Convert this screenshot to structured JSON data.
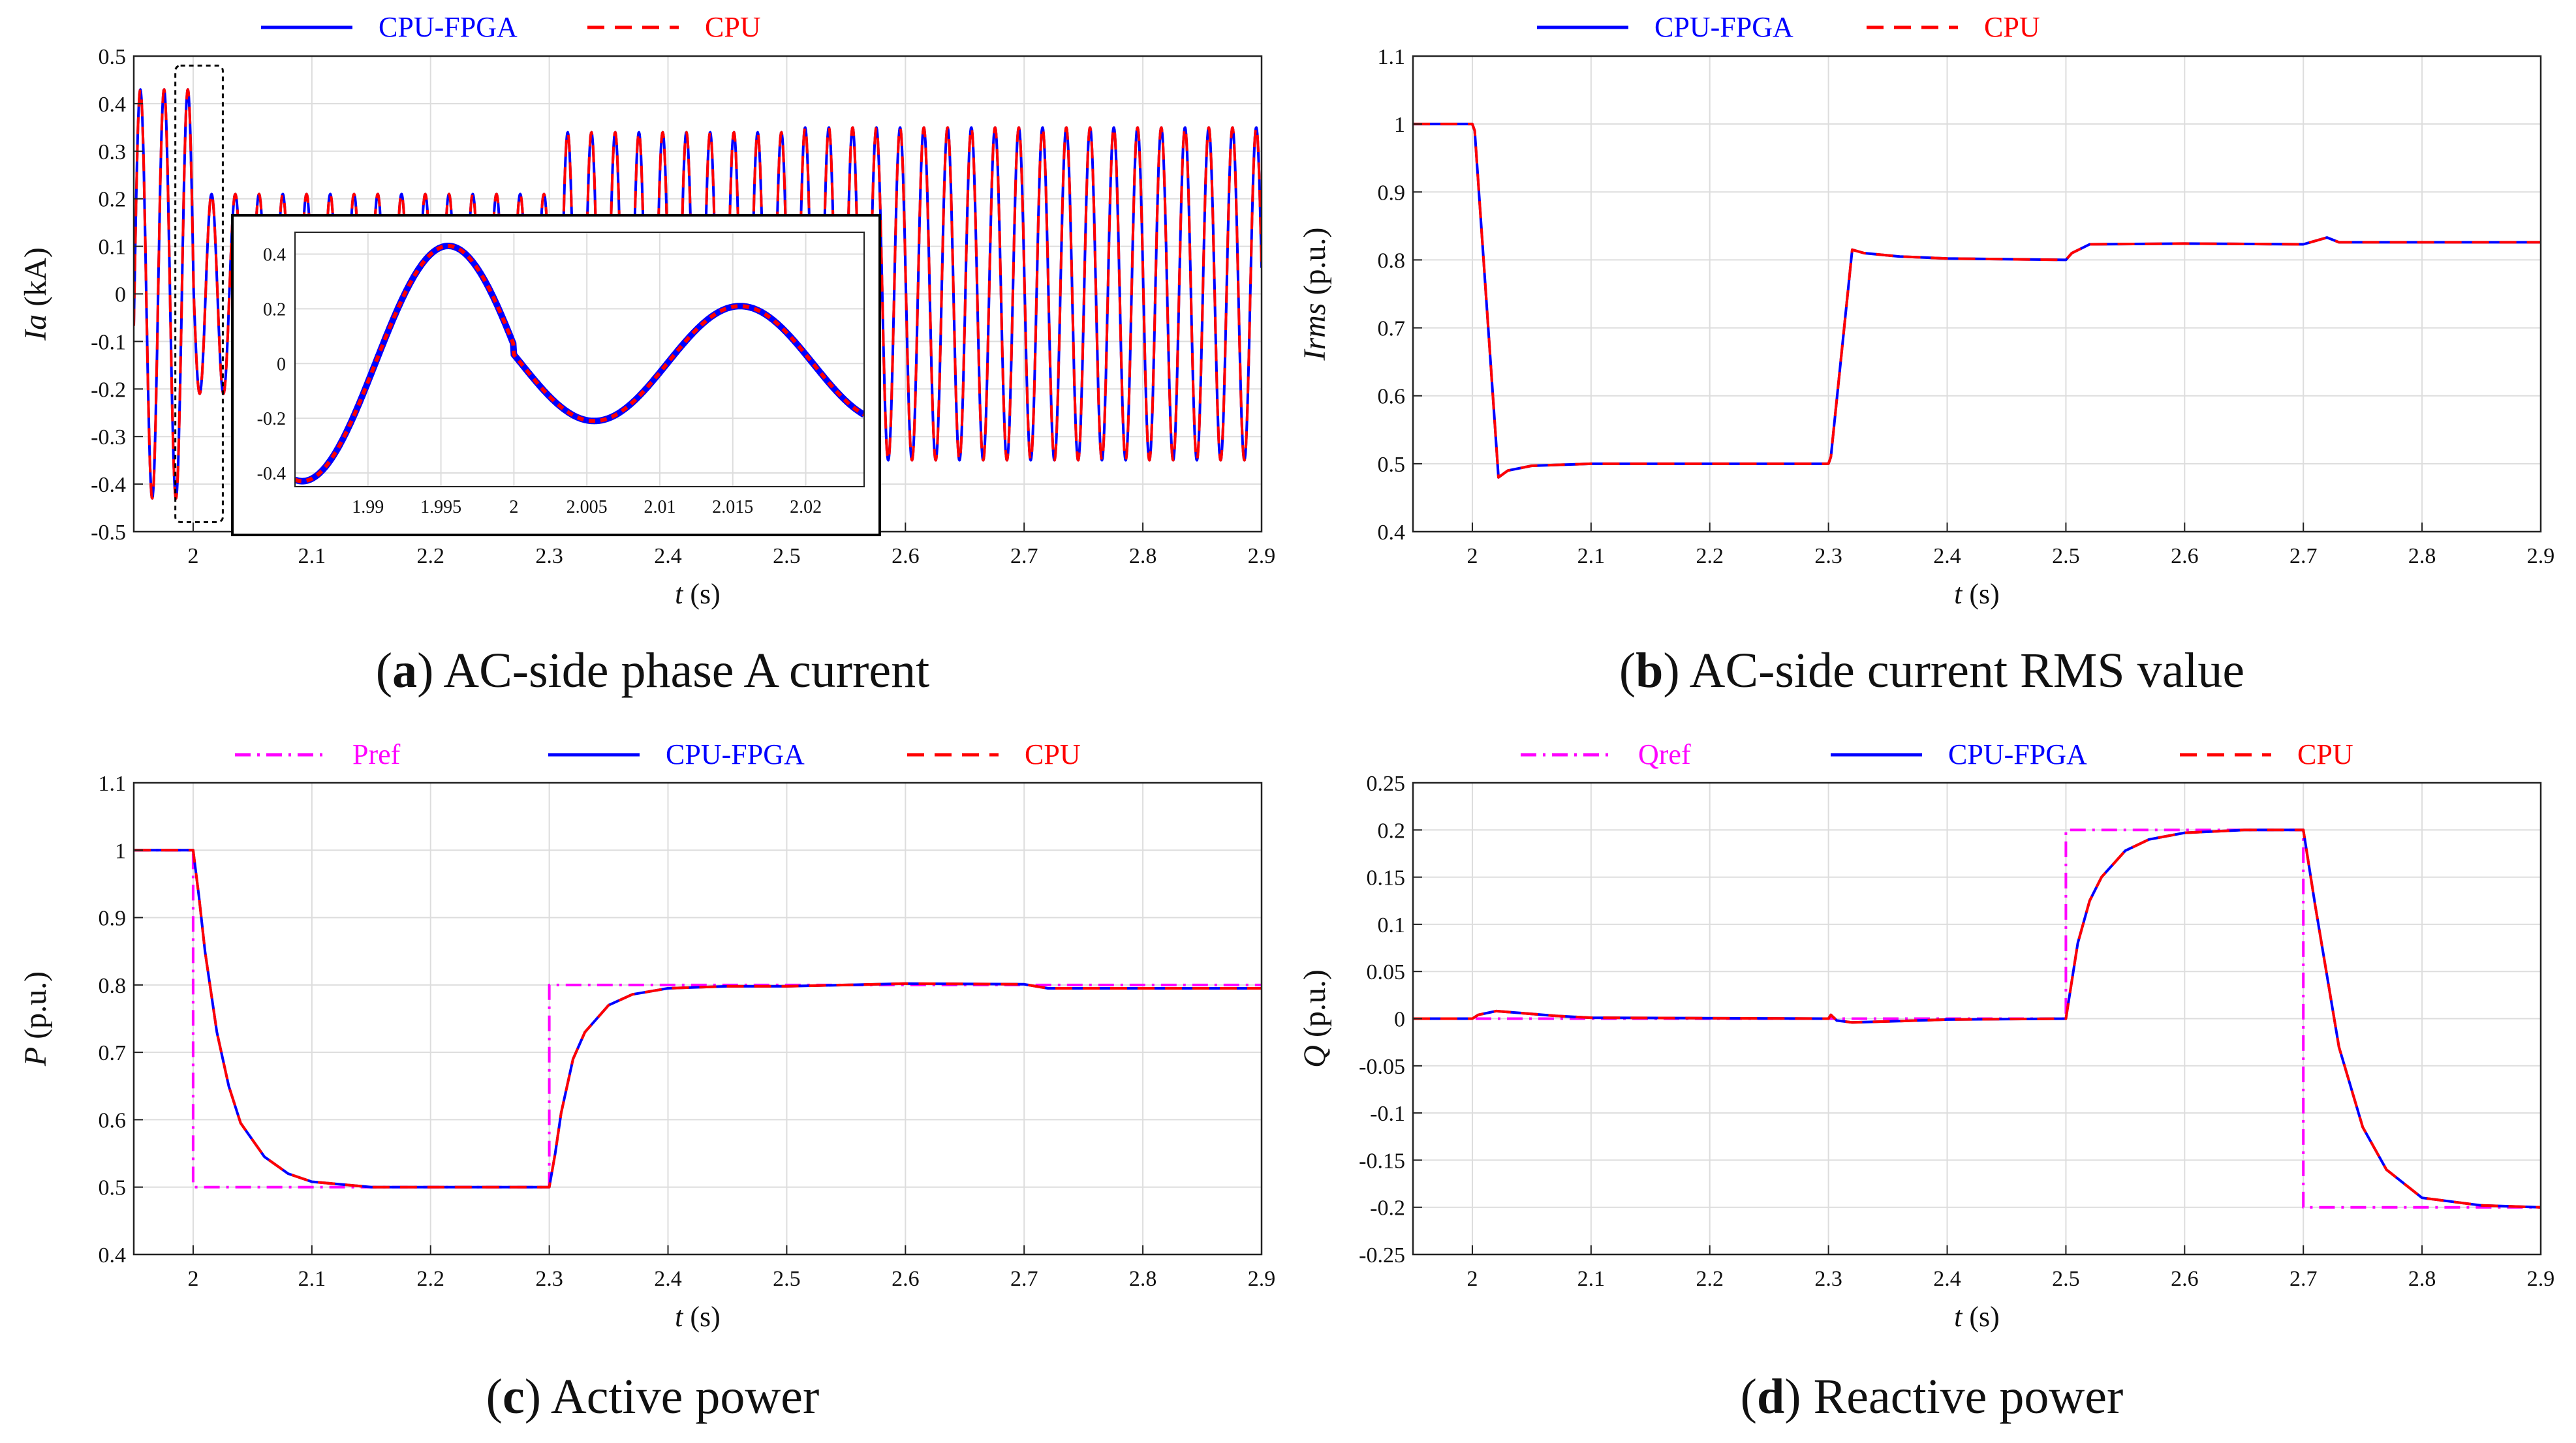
{
  "colors": {
    "cpu_fpga": "#0000ff",
    "cpu": "#ff0000",
    "ref": "#ff00ff",
    "grid": "#dddddd",
    "axis": "#222222",
    "zoom_box": "#000000"
  },
  "chart_data": [
    {
      "id": "a",
      "type": "line",
      "caption_letter": "a",
      "caption_text": "AC-side phase A current",
      "ylabel_italic": "Ia",
      "ylabel_unit": "(kA)",
      "xlabel_italic": "t",
      "xlabel_unit": "(s)",
      "xlim": [
        1.95,
        2.9
      ],
      "ylim": [
        -0.5,
        0.5
      ],
      "xticks": [
        2,
        2.1,
        2.2,
        2.3,
        2.4,
        2.5,
        2.6,
        2.7,
        2.8,
        2.9
      ],
      "xtick_labels": [
        "2",
        "2.1",
        "2.2",
        "2.3",
        "2.4",
        "2.5",
        "2.6",
        "2.7",
        "2.8",
        "2.9"
      ],
      "yticks": [
        -0.5,
        -0.4,
        -0.3,
        -0.2,
        -0.1,
        0,
        0.1,
        0.2,
        0.3,
        0.4,
        0.5
      ],
      "ytick_labels": [
        "-0.5",
        "-0.4",
        "-0.3",
        "-0.2",
        "-0.1",
        "0",
        "0.1",
        "0.2",
        "0.3",
        "0.4",
        "0.5"
      ],
      "grid": true,
      "legend": [
        "CPU-FPGA",
        "CPU"
      ],
      "legend_position": "top",
      "series": [
        {
          "name": "CPU-FPGA",
          "style": "solid",
          "color": "#0000ff",
          "signal": "sinusoid",
          "frequency_hz": 50,
          "amplitude_segments": [
            [
              1.95,
              2.0,
              0.43
            ],
            [
              2.0,
              2.3,
              0.21
            ],
            [
              2.3,
              2.5,
              0.34
            ],
            [
              2.5,
              2.9,
              0.35
            ]
          ]
        },
        {
          "name": "CPU",
          "style": "dashed",
          "color": "#ff0000",
          "signal": "sinusoid",
          "frequency_hz": 50,
          "amplitude_segments": [
            [
              1.95,
              2.0,
              0.43
            ],
            [
              2.0,
              2.3,
              0.21
            ],
            [
              2.3,
              2.5,
              0.34
            ],
            [
              2.5,
              2.9,
              0.35
            ]
          ]
        }
      ],
      "zoom_region": {
        "x": [
          1.985,
          2.025
        ],
        "y": [
          -0.48,
          0.48
        ]
      },
      "inset": {
        "xlim": [
          1.985,
          2.024
        ],
        "ylim": [
          -0.45,
          0.48
        ],
        "xticks": [
          1.99,
          1.995,
          2.0,
          2.005,
          2.01,
          2.015,
          2.02
        ],
        "xtick_labels": [
          "1.99",
          "1.995",
          "2",
          "2.005",
          "2.01",
          "2.015",
          "2.02"
        ],
        "yticks": [
          -0.4,
          -0.2,
          0,
          0.2,
          0.4
        ],
        "ytick_labels": [
          "-0.4",
          "-0.2",
          "0",
          "0.2",
          "0.4"
        ]
      }
    },
    {
      "id": "b",
      "type": "line",
      "caption_letter": "b",
      "caption_text": "AC-side current RMS value",
      "ylabel_italic": "Irms",
      "ylabel_unit": "(p.u.)",
      "xlabel_italic": "t",
      "xlabel_unit": "(s)",
      "xlim": [
        1.95,
        2.9
      ],
      "ylim": [
        0.4,
        1.1
      ],
      "xticks": [
        2,
        2.1,
        2.2,
        2.3,
        2.4,
        2.5,
        2.6,
        2.7,
        2.8,
        2.9
      ],
      "xtick_labels": [
        "2",
        "2.1",
        "2.2",
        "2.3",
        "2.4",
        "2.5",
        "2.6",
        "2.7",
        "2.8",
        "2.9"
      ],
      "yticks": [
        0.4,
        0.5,
        0.6,
        0.7,
        0.8,
        0.9,
        1,
        1.1
      ],
      "ytick_labels": [
        "0.4",
        "0.5",
        "0.6",
        "0.7",
        "0.8",
        "0.9",
        "1",
        "1.1"
      ],
      "grid": true,
      "legend": [
        "CPU-FPGA",
        "CPU"
      ],
      "legend_position": "top",
      "series": [
        {
          "name": "CPU-FPGA",
          "style": "solid",
          "color": "#0000ff",
          "x": [
            1.95,
            2.0,
            2.002,
            2.022,
            2.03,
            2.05,
            2.1,
            2.3,
            2.302,
            2.32,
            2.33,
            2.36,
            2.4,
            2.5,
            2.505,
            2.52,
            2.6,
            2.7,
            2.71,
            2.72,
            2.73,
            2.8,
            2.9
          ],
          "y": [
            1.0,
            1.0,
            0.99,
            0.48,
            0.49,
            0.497,
            0.5,
            0.5,
            0.51,
            0.815,
            0.81,
            0.805,
            0.802,
            0.8,
            0.81,
            0.823,
            0.824,
            0.823,
            0.828,
            0.833,
            0.826,
            0.826,
            0.826
          ]
        },
        {
          "name": "CPU",
          "style": "dashed",
          "color": "#ff0000",
          "x": [
            1.95,
            2.0,
            2.002,
            2.022,
            2.03,
            2.05,
            2.1,
            2.3,
            2.302,
            2.32,
            2.33,
            2.36,
            2.4,
            2.5,
            2.505,
            2.52,
            2.6,
            2.7,
            2.71,
            2.72,
            2.73,
            2.8,
            2.9
          ],
          "y": [
            1.0,
            1.0,
            0.99,
            0.48,
            0.49,
            0.497,
            0.5,
            0.5,
            0.51,
            0.815,
            0.81,
            0.805,
            0.802,
            0.8,
            0.81,
            0.823,
            0.824,
            0.823,
            0.828,
            0.833,
            0.826,
            0.826,
            0.826
          ]
        }
      ]
    },
    {
      "id": "c",
      "type": "line",
      "caption_letter": "c",
      "caption_text": "Active power",
      "ylabel_italic": "P",
      "ylabel_unit": "(p.u.)",
      "xlabel_italic": "t",
      "xlabel_unit": "(s)",
      "xlim": [
        1.95,
        2.9
      ],
      "ylim": [
        0.4,
        1.1
      ],
      "xticks": [
        2,
        2.1,
        2.2,
        2.3,
        2.4,
        2.5,
        2.6,
        2.7,
        2.8,
        2.9
      ],
      "xtick_labels": [
        "2",
        "2.1",
        "2.2",
        "2.3",
        "2.4",
        "2.5",
        "2.6",
        "2.7",
        "2.8",
        "2.9"
      ],
      "yticks": [
        0.4,
        0.5,
        0.6,
        0.7,
        0.8,
        0.9,
        1,
        1.1
      ],
      "ytick_labels": [
        "0.4",
        "0.5",
        "0.6",
        "0.7",
        "0.8",
        "0.9",
        "1",
        "1.1"
      ],
      "grid": true,
      "legend": [
        "Pref",
        "CPU-FPGA",
        "CPU"
      ],
      "legend_position": "top",
      "series": [
        {
          "name": "Pref",
          "style": "dashdot",
          "color": "#ff00ff",
          "x": [
            1.95,
            2.0,
            2.0,
            2.3,
            2.3,
            2.9
          ],
          "y": [
            1.0,
            1.0,
            0.5,
            0.5,
            0.8,
            0.8
          ]
        },
        {
          "name": "CPU-FPGA",
          "style": "solid",
          "color": "#0000ff",
          "x": [
            1.95,
            2.0,
            2.005,
            2.01,
            2.02,
            2.03,
            2.04,
            2.06,
            2.08,
            2.1,
            2.15,
            2.3,
            2.305,
            2.31,
            2.32,
            2.33,
            2.35,
            2.37,
            2.4,
            2.45,
            2.5,
            2.6,
            2.7,
            2.72,
            2.9
          ],
          "y": [
            1.0,
            1.0,
            0.93,
            0.85,
            0.73,
            0.65,
            0.595,
            0.545,
            0.52,
            0.508,
            0.5,
            0.5,
            0.55,
            0.61,
            0.69,
            0.73,
            0.77,
            0.786,
            0.795,
            0.798,
            0.798,
            0.802,
            0.801,
            0.795,
            0.795
          ]
        },
        {
          "name": "CPU",
          "style": "dashed",
          "color": "#ff0000",
          "x": [
            1.95,
            2.0,
            2.005,
            2.01,
            2.02,
            2.03,
            2.04,
            2.06,
            2.08,
            2.1,
            2.15,
            2.3,
            2.305,
            2.31,
            2.32,
            2.33,
            2.35,
            2.37,
            2.4,
            2.45,
            2.5,
            2.6,
            2.7,
            2.72,
            2.9
          ],
          "y": [
            1.0,
            1.0,
            0.93,
            0.85,
            0.73,
            0.65,
            0.595,
            0.545,
            0.52,
            0.508,
            0.5,
            0.5,
            0.55,
            0.61,
            0.69,
            0.73,
            0.77,
            0.786,
            0.795,
            0.798,
            0.798,
            0.802,
            0.801,
            0.795,
            0.795
          ]
        }
      ]
    },
    {
      "id": "d",
      "type": "line",
      "caption_letter": "d",
      "caption_text": "Reactive power",
      "ylabel_italic": "Q",
      "ylabel_unit": "(p.u.)",
      "xlabel_italic": "t",
      "xlabel_unit": "(s)",
      "xlim": [
        1.95,
        2.9
      ],
      "ylim": [
        -0.25,
        0.25
      ],
      "xticks": [
        2,
        2.1,
        2.2,
        2.3,
        2.4,
        2.5,
        2.6,
        2.7,
        2.8,
        2.9
      ],
      "xtick_labels": [
        "2",
        "2.1",
        "2.2",
        "2.3",
        "2.4",
        "2.5",
        "2.6",
        "2.7",
        "2.8",
        "2.9"
      ],
      "yticks": [
        -0.25,
        -0.2,
        -0.15,
        -0.1,
        -0.05,
        0,
        0.05,
        0.1,
        0.15,
        0.2,
        0.25
      ],
      "ytick_labels": [
        "-0.25",
        "-0.2",
        "-0.15",
        "-0.1",
        "-0.05",
        "0",
        "0.05",
        "0.1",
        "0.15",
        "0.2",
        "0.25"
      ],
      "grid": true,
      "legend": [
        "Qref",
        "CPU-FPGA",
        "CPU"
      ],
      "legend_position": "top",
      "series": [
        {
          "name": "Qref",
          "style": "dashdot",
          "color": "#ff00ff",
          "x": [
            1.95,
            2.5,
            2.5,
            2.7,
            2.7,
            2.9
          ],
          "y": [
            0.0,
            0.0,
            0.2,
            0.2,
            -0.2,
            -0.2
          ]
        },
        {
          "name": "CPU-FPGA",
          "style": "solid",
          "color": "#0000ff",
          "x": [
            1.95,
            2.0,
            2.005,
            2.02,
            2.04,
            2.07,
            2.1,
            2.3,
            2.302,
            2.307,
            2.32,
            2.35,
            2.4,
            2.5,
            2.505,
            2.51,
            2.52,
            2.53,
            2.55,
            2.57,
            2.6,
            2.65,
            2.7,
            2.705,
            2.71,
            2.72,
            2.73,
            2.75,
            2.77,
            2.8,
            2.85,
            2.9
          ],
          "y": [
            0.0,
            0.0,
            0.004,
            0.008,
            0.006,
            0.003,
            0.001,
            0.0,
            0.004,
            -0.002,
            -0.004,
            -0.003,
            -0.001,
            0.0,
            0.04,
            0.08,
            0.125,
            0.15,
            0.178,
            0.19,
            0.197,
            0.2,
            0.2,
            0.16,
            0.12,
            0.045,
            -0.03,
            -0.115,
            -0.16,
            -0.19,
            -0.198,
            -0.2
          ]
        },
        {
          "name": "CPU",
          "style": "dashed",
          "color": "#ff0000",
          "x": [
            1.95,
            2.0,
            2.005,
            2.02,
            2.04,
            2.07,
            2.1,
            2.3,
            2.302,
            2.307,
            2.32,
            2.35,
            2.4,
            2.5,
            2.505,
            2.51,
            2.52,
            2.53,
            2.55,
            2.57,
            2.6,
            2.65,
            2.7,
            2.705,
            2.71,
            2.72,
            2.73,
            2.75,
            2.77,
            2.8,
            2.85,
            2.9
          ],
          "y": [
            0.0,
            0.0,
            0.004,
            0.008,
            0.006,
            0.003,
            0.001,
            0.0,
            0.004,
            -0.002,
            -0.004,
            -0.003,
            -0.001,
            0.0,
            0.04,
            0.08,
            0.125,
            0.15,
            0.178,
            0.19,
            0.197,
            0.2,
            0.2,
            0.16,
            0.12,
            0.045,
            -0.03,
            -0.115,
            -0.16,
            -0.19,
            -0.198,
            -0.2
          ]
        }
      ]
    }
  ]
}
